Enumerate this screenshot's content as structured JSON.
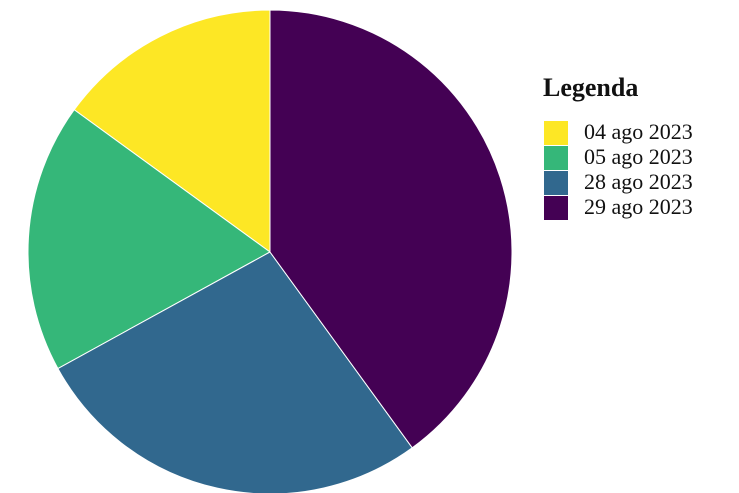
{
  "chart_data": {
    "type": "pie",
    "legend_title": "Legenda",
    "categories": [
      "04 ago 2023",
      "05 ago 2023",
      "28 ago 2023",
      "29 ago 2023"
    ],
    "values": [
      15,
      18,
      27,
      40
    ],
    "colors": [
      "#fde725",
      "#35b779",
      "#31688e",
      "#440154"
    ],
    "legend": "right"
  }
}
